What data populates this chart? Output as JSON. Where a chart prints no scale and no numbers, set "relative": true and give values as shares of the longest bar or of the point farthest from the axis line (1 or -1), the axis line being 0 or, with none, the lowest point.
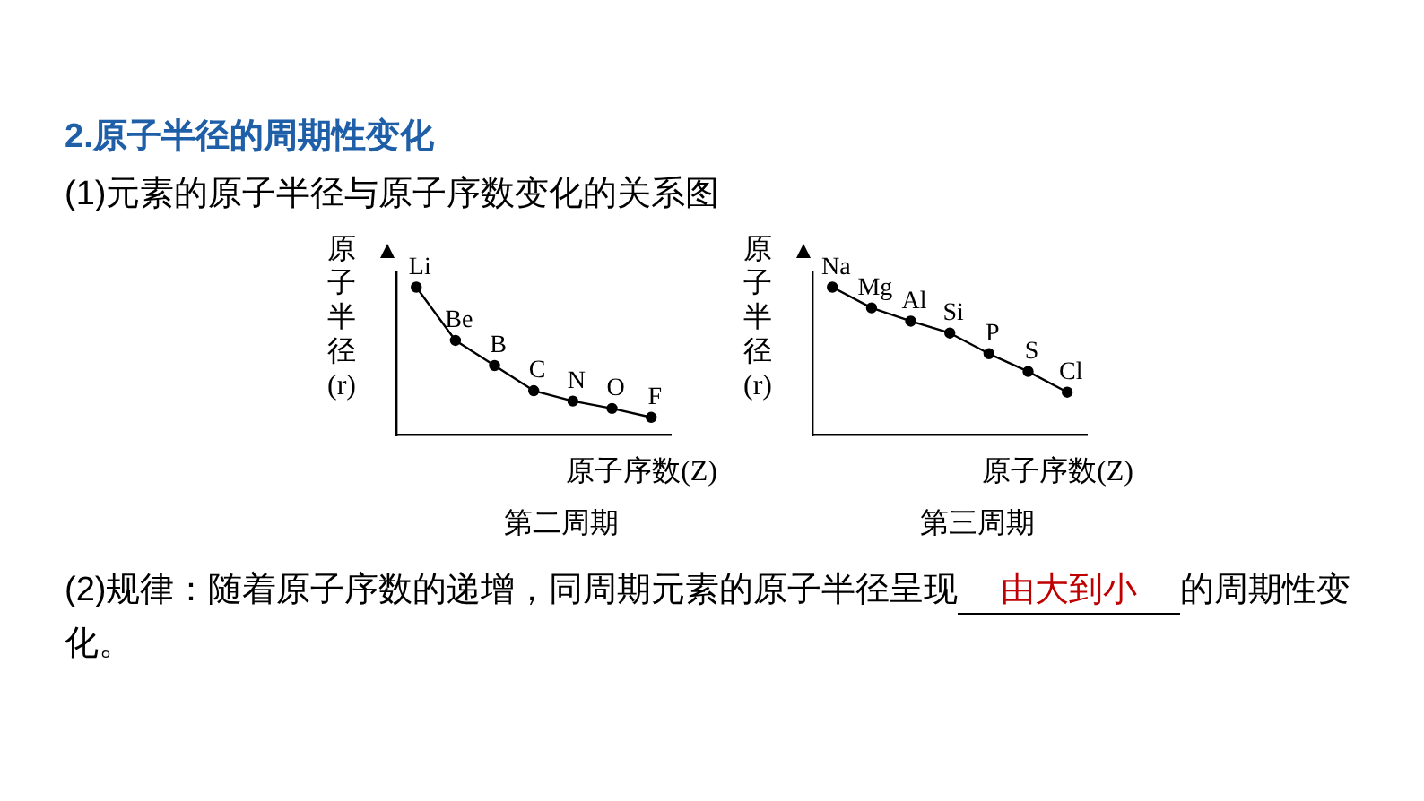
{
  "chart_data": [
    {
      "type": "other",
      "title": "2.原子半径的周期性变化",
      "subtitle": "(1)元素的原子半径与原子序数变化的关系图",
      "annotations": [
        "(2)规律：随着原子序数的递增，同周期元素的原子半径呈现",
        "由大到小",
        "的周期性变化。"
      ]
    },
    {
      "type": "line",
      "title": "第二周期",
      "xlabel": "原子序数(Z)",
      "ylabel": "原子半径(r)",
      "relative": true,
      "categories": [
        null,
        null,
        null,
        null,
        null,
        null,
        null
      ],
      "values": [
        1,
        0.64,
        0.47,
        0.3,
        0.23,
        0.18,
        0.12
      ],
      "annotations": [
        {
          "text": "Li",
          "y": 1
        },
        {
          "text": "Be",
          "y": 0.64
        },
        {
          "text": "B",
          "y": 0.47
        },
        {
          "text": "C",
          "y": 0.3
        },
        {
          "text": "N",
          "y": 0.23
        },
        {
          "text": "O",
          "y": 0.18
        },
        {
          "text": "F",
          "y": 0.12
        }
      ],
      "color": "#000000",
      "marker": "circle",
      "grid": false,
      "legend": false
    },
    {
      "type": "line",
      "title": "第三周期",
      "xlabel": "原子序数(Z)",
      "ylabel": "原子半径(r)",
      "relative": true,
      "categories": [
        null,
        null,
        null,
        null,
        null,
        null,
        null
      ],
      "values": [
        1,
        0.86,
        0.77,
        0.69,
        0.55,
        0.43,
        0.29
      ],
      "annotations": [
        {
          "text": "Na",
          "y": 1
        },
        {
          "text": "Mg",
          "y": 0.86
        },
        {
          "text": "Al",
          "y": 0.77
        },
        {
          "text": "Si",
          "y": 0.69
        },
        {
          "text": "P",
          "y": 0.55
        },
        {
          "text": "S",
          "y": 0.43
        },
        {
          "text": "Cl",
          "y": 0.29
        }
      ],
      "color": "#000000",
      "marker": "circle",
      "grid": false,
      "legend": false
    }
  ]
}
